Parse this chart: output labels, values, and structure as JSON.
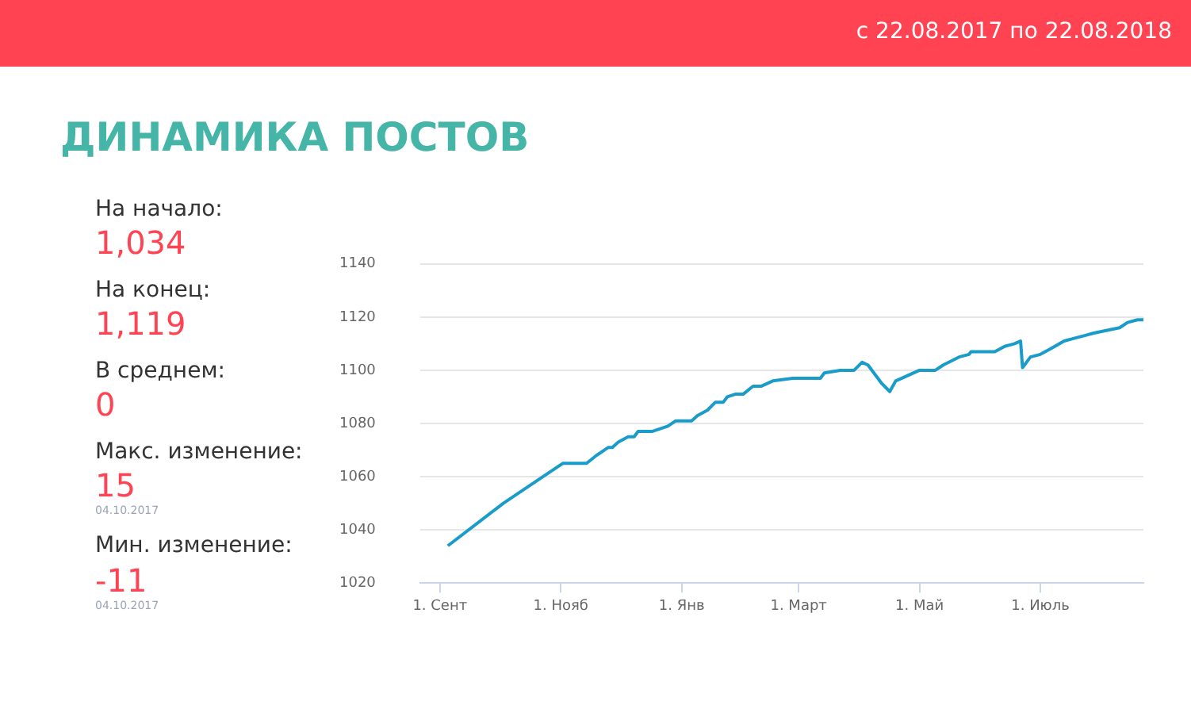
{
  "chart_data": {
    "type": "line",
    "title": "ДИНАМИКА ПОСТОВ",
    "annotations": [
      "с 22.08.2017 по 22.08.2018",
      "На начало:",
      "1,034",
      "На конец:",
      "1,119",
      "В среднем:",
      "0",
      "Макс. изменение:",
      "15",
      "04.10.2017",
      "Мин. изменение:",
      "-11",
      "04.10.2017"
    ],
    "x": [
      "2017-09-05",
      "2017-10-03",
      "2017-10-31",
      "2017-11-02",
      "2017-11-14",
      "2017-11-19",
      "2017-11-25",
      "2017-11-27",
      "2017-11-30",
      "2017-12-05",
      "2017-12-08",
      "2017-12-10",
      "2017-12-17",
      "2017-12-25",
      "2017-12-29",
      "2018-01-06",
      "2018-01-09",
      "2018-01-14",
      "2018-01-18",
      "2018-01-22",
      "2018-01-24",
      "2018-01-28",
      "2018-02-01",
      "2018-02-06",
      "2018-02-10",
      "2018-02-16",
      "2018-02-26",
      "2018-03-12",
      "2018-03-14",
      "2018-03-22",
      "2018-03-29",
      "2018-04-02",
      "2018-04-05",
      "2018-04-12",
      "2018-04-16",
      "2018-04-19",
      "2018-05-01",
      "2018-05-09",
      "2018-05-13",
      "2018-05-21",
      "2018-05-26",
      "2018-05-27",
      "2018-06-08",
      "2018-06-13",
      "2018-06-18",
      "2018-06-21",
      "2018-06-22",
      "2018-06-26",
      "2018-07-01",
      "2018-07-06",
      "2018-07-13",
      "2018-07-18",
      "2018-07-23",
      "2018-07-28",
      "2018-08-10",
      "2018-08-14",
      "2018-08-19",
      "2018-08-22"
    ],
    "series": [
      {
        "color": "#1a9ccb",
        "values": [
          1034,
          1050,
          1064,
          1065,
          1065,
          1068,
          1071,
          1071,
          1073,
          1075,
          1075,
          1077,
          1077,
          1079,
          1081,
          1081,
          1083,
          1085,
          1088,
          1088,
          1090,
          1091,
          1091,
          1094,
          1094,
          1096,
          1097,
          1097,
          1099,
          1100,
          1100,
          1103,
          1102,
          1095,
          1092,
          1096,
          1100,
          1100,
          1102,
          1105,
          1106,
          1107,
          1107,
          1109,
          1110,
          1111,
          1101,
          1105,
          1106,
          1108,
          1111,
          1112,
          1113,
          1114,
          1116,
          1118,
          1119,
          1119
        ]
      }
    ],
    "xlim": [
      "2017-08-22",
      "2018-08-22"
    ],
    "xticks": [
      {
        "value": "2017-09-01",
        "label": "1. Сент"
      },
      {
        "value": "2017-11-01",
        "label": "1. Нояб"
      },
      {
        "value": "2018-01-01",
        "label": "1. Янв"
      },
      {
        "value": "2018-03-01",
        "label": "1. Март"
      },
      {
        "value": "2018-05-01",
        "label": "1. Май"
      },
      {
        "value": "2018-07-01",
        "label": "1. Июль"
      }
    ],
    "ylim": [
      1020,
      1140
    ],
    "yticks": [
      1020,
      1040,
      1060,
      1080,
      1100,
      1120,
      1140
    ],
    "grid": "y",
    "legend": false,
    "marker": "none",
    "line_style": "solid"
  }
}
